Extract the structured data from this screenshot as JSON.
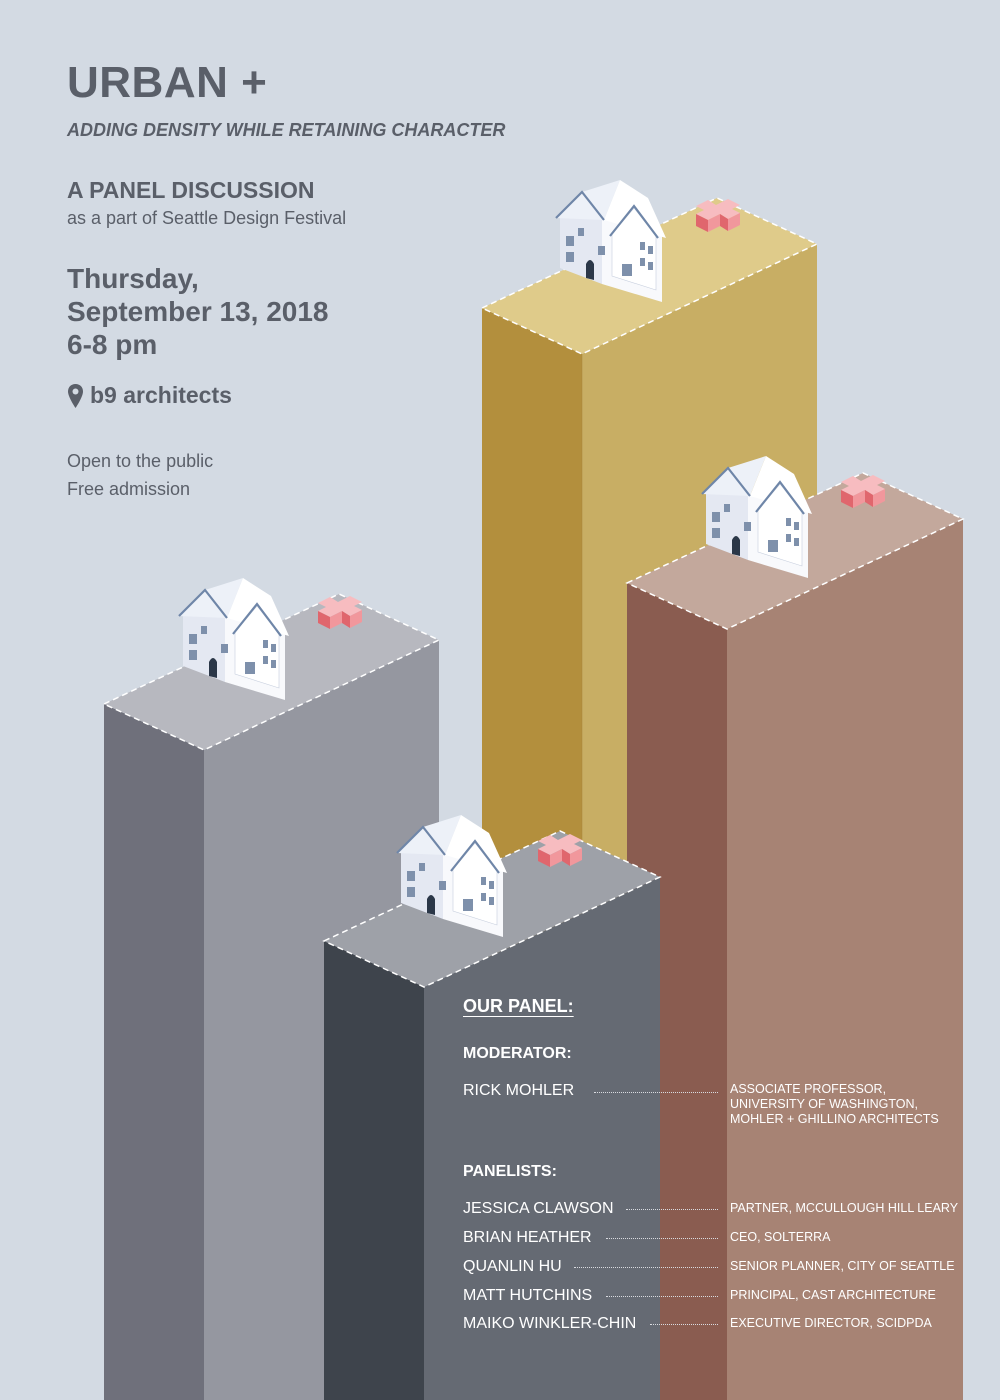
{
  "poster": {
    "title": "URBAN +",
    "subtitle": "ADDING DENSITY WHILE RETAINING CHARACTER",
    "panel_heading": "A PANEL DISCUSSION",
    "festival_line": "as a part of Seattle Design Festival",
    "date_line1": "Thursday,",
    "date_line2": "September 13, 2018",
    "time": "6-8 pm",
    "venue": "b9 architects",
    "open_line": "Open to the public",
    "admission_line": "Free admission"
  },
  "panel": {
    "heading": "OUR PANEL:",
    "moderator_label": "MODERATOR:",
    "moderator": {
      "name": "RICK MOHLER",
      "role_lines": [
        "ASSOCIATE PROFESSOR,",
        "UNIVERSITY OF WASHINGTON,",
        "MOHLER + GHILLINO ARCHITECTS"
      ]
    },
    "panelists_label": "PANELISTS:",
    "panelists": [
      {
        "name": "JESSICA CLAWSON",
        "role": "PARTNER, MCCULLOUGH HILL LEARY"
      },
      {
        "name": "BRIAN HEATHER",
        "role": "CEO, SOLTERRA"
      },
      {
        "name": "QUANLIN HU",
        "role": "SENIOR PLANNER, CITY OF SEATTLE"
      },
      {
        "name": "MATT HUTCHINS",
        "role": "PRINCIPAL, CAST ARCHITECTURE"
      },
      {
        "name": "MAIKO WINKLER-CHIN",
        "role": "EXECUTIVE DIRECTOR, SCIDPDA"
      }
    ]
  },
  "colors": {
    "background": "#d3dae3",
    "text": "#5a5f69",
    "gold_left": "#b38f3d",
    "gold_right": "#c8ae64",
    "brown_left": "#8a5c50",
    "brown_right": "#a78374",
    "gray_left": "#6f707b",
    "gray_right": "#9597a0",
    "dark_left": "#3e444c",
    "dark_right": "#656a73",
    "plus": "#ee9a9e"
  },
  "icons": [
    "house-icon",
    "plus-icon",
    "location-pin-icon"
  ]
}
